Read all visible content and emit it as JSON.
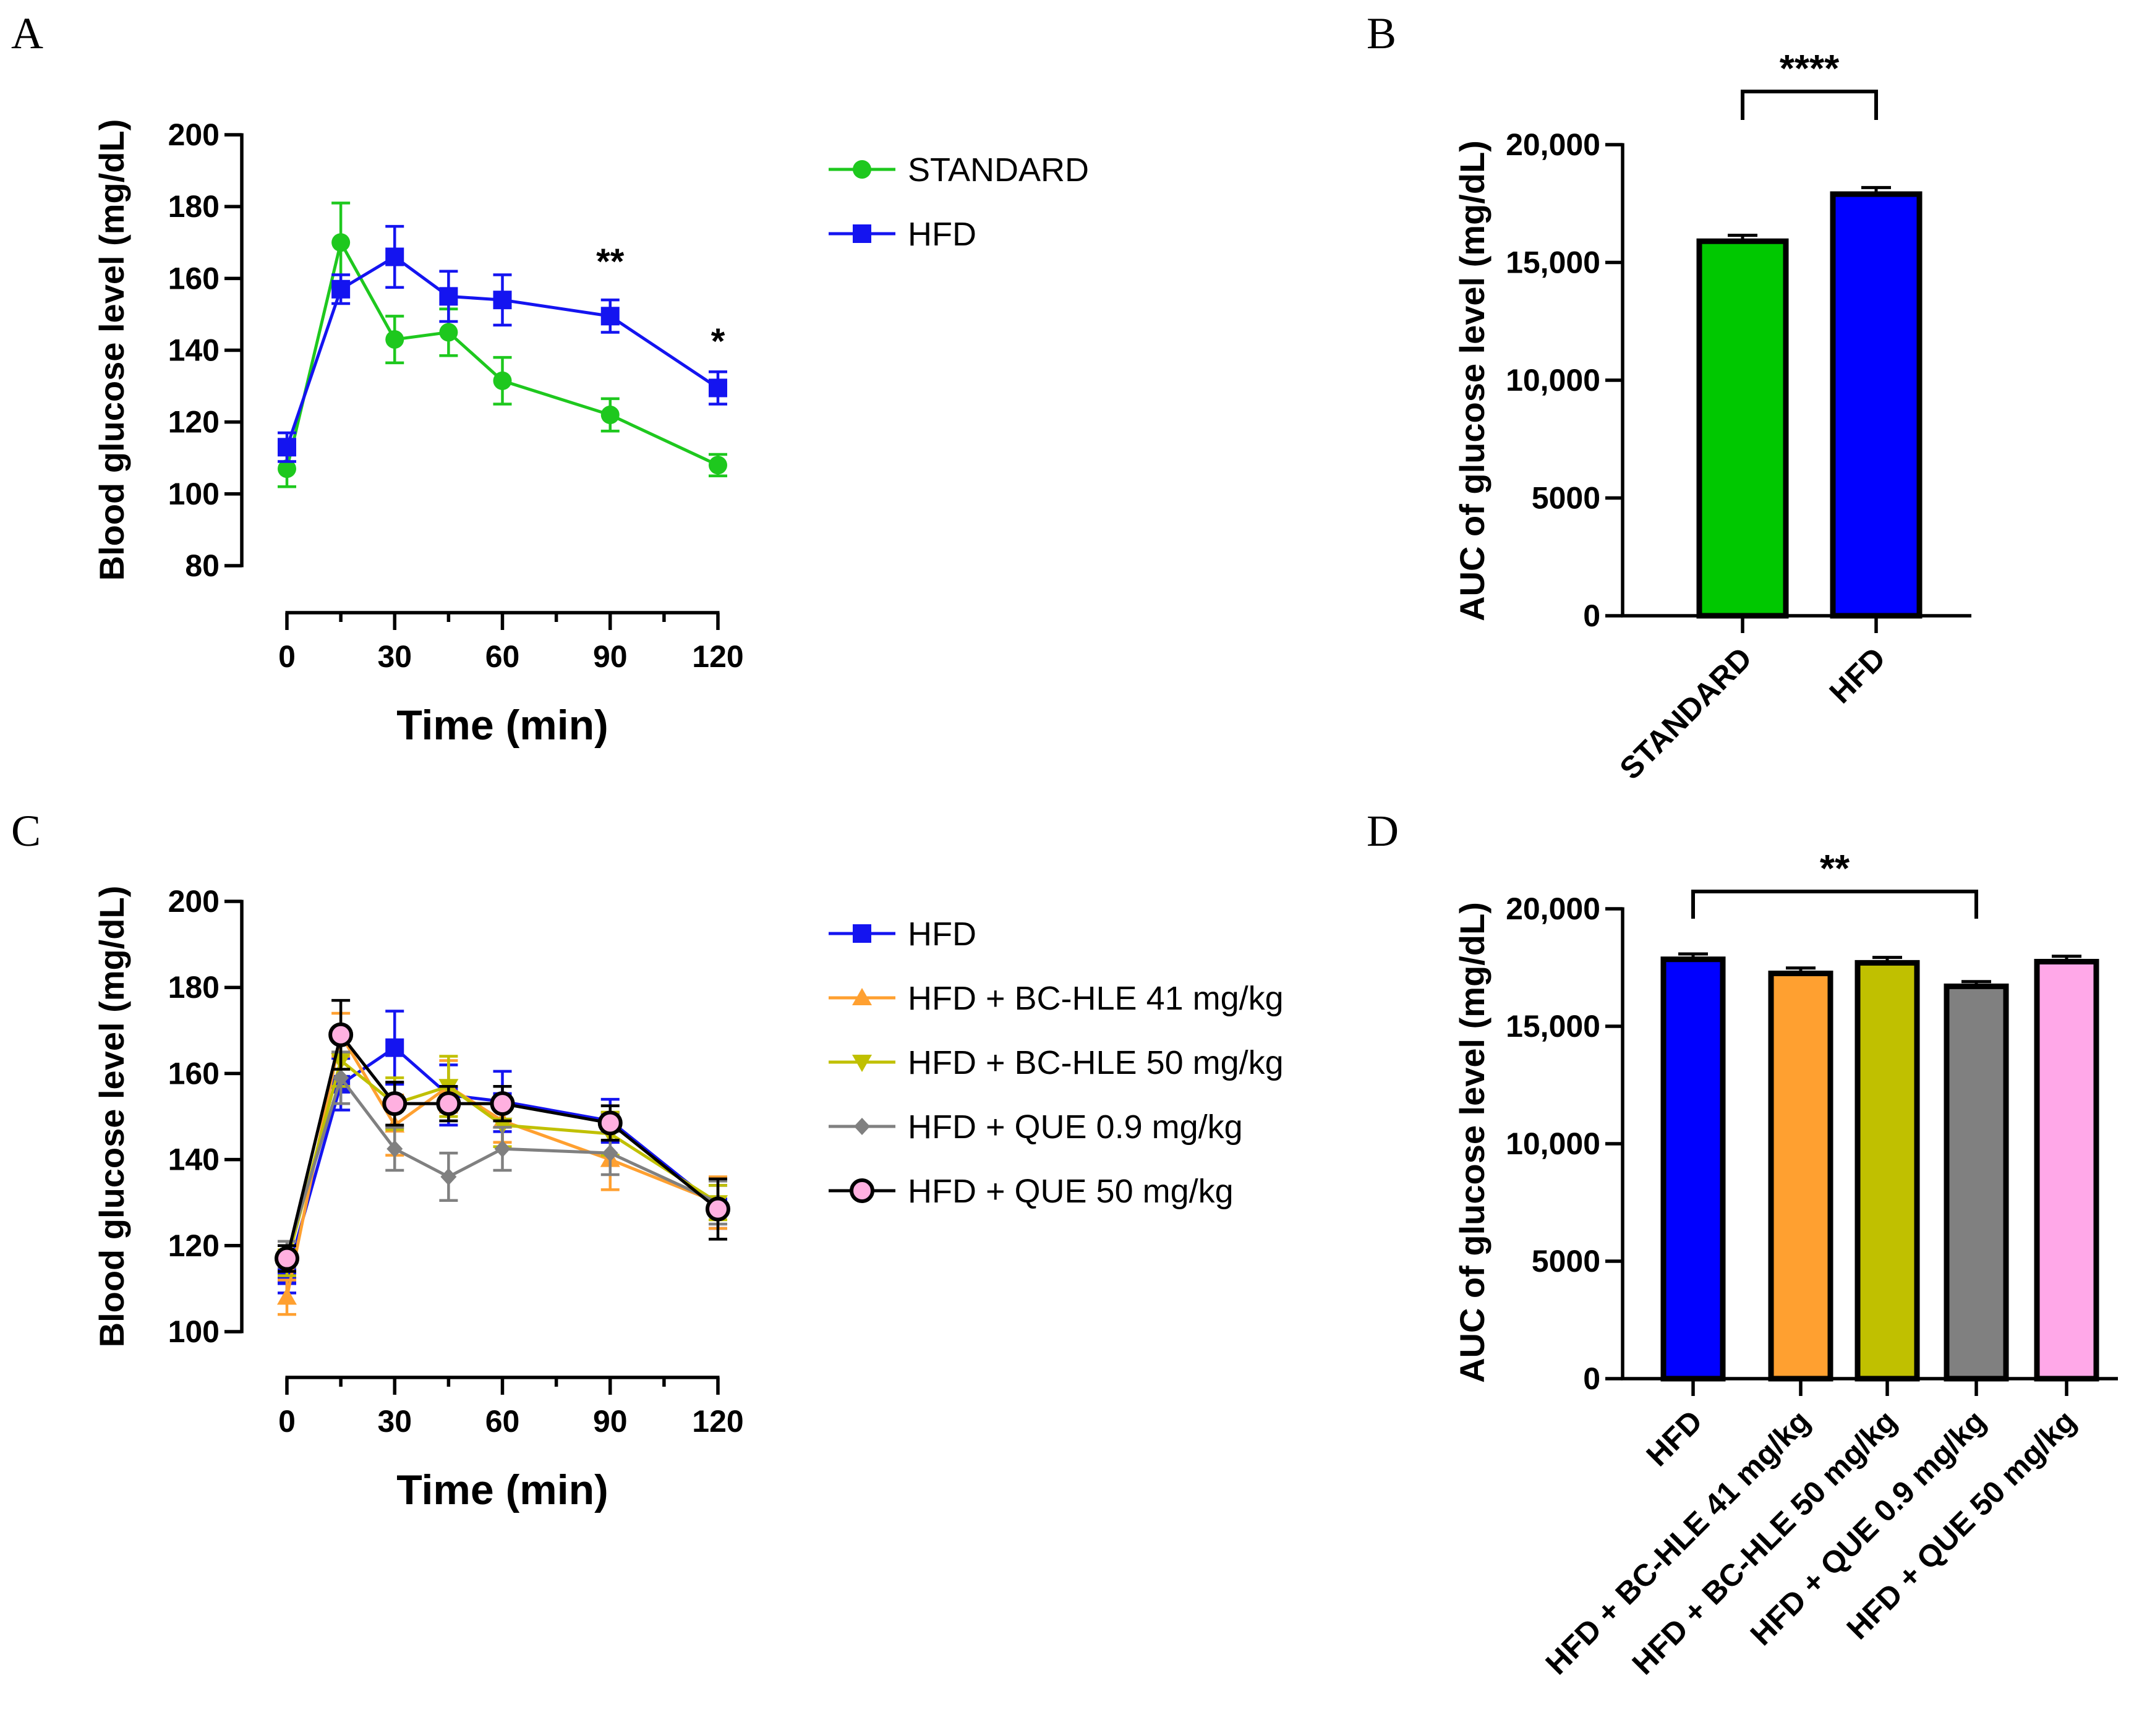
{
  "chart_data": [
    {
      "panel": "A",
      "type": "line",
      "ylabel": "Blood glucose level (mg/dL)",
      "xlabel": "Time (min)",
      "xlim": [
        0,
        120
      ],
      "ylim": [
        80,
        200
      ],
      "xticks": [
        "0",
        "30",
        "60",
        "90",
        "120"
      ],
      "yticks": [
        "80",
        "100",
        "120",
        "140",
        "160",
        "180",
        "200"
      ],
      "x": [
        0,
        15,
        30,
        45,
        60,
        90,
        120
      ],
      "series": [
        {
          "name": "STANDARD",
          "color": "#1ec81e",
          "marker": "circle",
          "values": [
            107,
            170,
            143,
            145,
            131.5,
            122,
            108
          ],
          "errors": [
            5,
            11,
            6.5,
            6.5,
            6.5,
            4.5,
            3
          ]
        },
        {
          "name": "HFD",
          "color": "#1414f0",
          "marker": "square",
          "values": [
            113,
            157,
            166,
            155,
            154,
            149.5,
            129.5
          ],
          "errors": [
            4,
            4,
            8.5,
            7,
            7,
            4.5,
            4.5
          ]
        }
      ],
      "annotations": [
        {
          "x": 90,
          "text": "**"
        },
        {
          "x": 120,
          "text": "*"
        }
      ]
    },
    {
      "panel": "B",
      "type": "bar",
      "ylabel": "AUC of glucose level (mg/dL)",
      "ylim": [
        0,
        20000
      ],
      "yticks": [
        "0",
        "5000",
        "10,000",
        "15,000",
        "20,000"
      ],
      "categories": [
        "STANDARD",
        "HFD"
      ],
      "values": [
        15900,
        17900
      ],
      "errors": [
        250,
        280
      ],
      "colors": [
        "#00c800",
        "#0000ff"
      ],
      "significance": {
        "from": 0,
        "to": 1,
        "text": "****"
      }
    },
    {
      "panel": "C",
      "type": "line",
      "ylabel": "Blood glucose level (mg/dL)",
      "xlabel": "Time (min)",
      "xlim": [
        0,
        120
      ],
      "ylim": [
        100,
        200
      ],
      "xticks": [
        "0",
        "30",
        "60",
        "90",
        "120"
      ],
      "yticks": [
        "100",
        "120",
        "140",
        "160",
        "180",
        "200"
      ],
      "x": [
        0,
        15,
        30,
        45,
        60,
        90,
        120
      ],
      "series": [
        {
          "name": "HFD",
          "color": "#1414f0",
          "marker": "square",
          "values": [
            113,
            157.5,
            166,
            155,
            153.5,
            149,
            129
          ],
          "errors": [
            4,
            6,
            8.5,
            7,
            7,
            5,
            5
          ]
        },
        {
          "name": "HFD + BC-HLE 41 mg/kg",
          "color": "#ffa030",
          "marker": "triangle-up",
          "values": [
            108,
            169,
            148,
            157,
            149,
            140,
            130
          ],
          "errors": [
            4,
            5,
            7,
            6,
            5,
            7,
            6
          ]
        },
        {
          "name": "HFD + BC-HLE 50 mg/kg",
          "color": "#c0c000",
          "marker": "triangle-down",
          "values": [
            116,
            163,
            153,
            157,
            148,
            146,
            130
          ],
          "errors": [
            3,
            6,
            6,
            7,
            5,
            5,
            4
          ]
        },
        {
          "name": "HFD + QUE 0.9 mg/kg",
          "color": "#808080",
          "marker": "diamond",
          "values": [
            118,
            159,
            142.5,
            136,
            142.5,
            141.5,
            130
          ],
          "errors": [
            3,
            6,
            5,
            5.5,
            5,
            5,
            5
          ]
        },
        {
          "name": "HFD + QUE 50 mg/kg",
          "color": "#000000",
          "marker": "circle-open",
          "fill": "#ffb0e0",
          "values": [
            117,
            169,
            153,
            153,
            153,
            148.5,
            128.5
          ],
          "errors": [
            3,
            8,
            5,
            4,
            4,
            4,
            7
          ]
        }
      ]
    },
    {
      "panel": "D",
      "type": "bar",
      "ylabel": "AUC of glucose level (mg/dL)",
      "ylim": [
        0,
        20000
      ],
      "yticks": [
        "0",
        "5000",
        "10,000",
        "15,000",
        "20,000"
      ],
      "categories": [
        "HFD",
        "HFD + BC-HLE 41 mg/kg",
        "HFD + BC-HLE 50 mg/kg",
        "HFD + QUE 0.9 mg/kg",
        "HFD + QUE 50 mg/kg"
      ],
      "values": [
        17850,
        17250,
        17700,
        16700,
        17750
      ],
      "errors": [
        230,
        230,
        230,
        200,
        230
      ],
      "colors": [
        "#0000ff",
        "#ffa030",
        "#c0c000",
        "#808080",
        "#ffa8e8"
      ],
      "significance": {
        "from": 0,
        "to": 3,
        "text": "**"
      }
    }
  ]
}
